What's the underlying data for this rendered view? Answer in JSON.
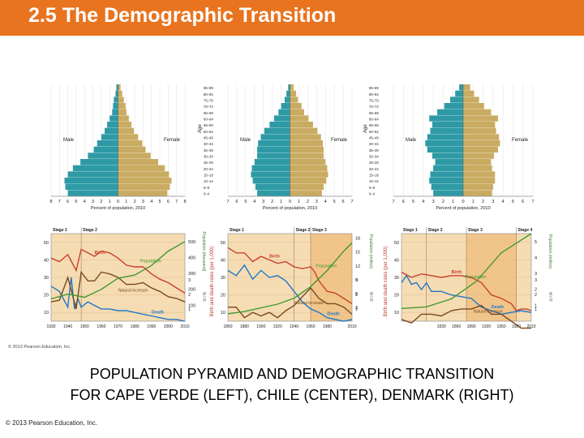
{
  "slide": {
    "title": "2.5 The Demographic Transition",
    "caption_line1": "POPULATION PYRAMID AND DEMOGRAPHIC TRANSITION",
    "caption_line2": "FOR CAPE VERDE (LEFT), CHILE (CENTER), DENMARK (RIGHT)",
    "footer": "© 2013 Pearson Education, Inc.",
    "figure_credit": "© 2013 Pearson Education, Inc."
  },
  "colors": {
    "title_bar": "#e8741f",
    "male": "#2e9aa6",
    "female": "#c9ab62",
    "graph_bg": "#f6dcb3",
    "graph_stage2": "#f1c58a",
    "birth": "#c8412b",
    "death": "#1f78c8",
    "natural_increase": "#7a4a1e",
    "population": "#3f9a2f"
  },
  "chart_data": [
    {
      "type": "bar",
      "subtype": "population-pyramid",
      "country": "Cape Verde",
      "ylabel": "Age",
      "xlabel": "Percent of population, 2010",
      "xlim": [
        -8,
        8
      ],
      "x_ticks": [
        "8",
        "7",
        "6",
        "5",
        "4",
        "3",
        "2",
        "1",
        "0",
        "1",
        "2",
        "3",
        "4",
        "5",
        "6",
        "7",
        "8"
      ],
      "age_groups": [
        "0–4",
        "5–9",
        "10–14",
        "15–19",
        "20–24",
        "25–29",
        "30–34",
        "35–39",
        "40–44",
        "45–49",
        "50–54",
        "55–59",
        "60–64",
        "65–69",
        "70–74",
        "75–79",
        "80–84",
        "85–89"
      ],
      "series": [
        {
          "name": "Male",
          "values": [
            6.0,
            6.3,
            6.4,
            6.0,
            5.4,
            4.5,
            3.6,
            2.9,
            2.5,
            2.0,
            1.6,
            1.3,
            1.0,
            0.7,
            0.6,
            0.5,
            0.3,
            0.2
          ]
        },
        {
          "name": "Female",
          "values": [
            5.9,
            6.2,
            6.4,
            6.1,
            5.6,
            4.8,
            3.9,
            3.3,
            2.9,
            2.4,
            1.9,
            1.6,
            1.3,
            1.0,
            0.9,
            0.7,
            0.5,
            0.3
          ]
        }
      ]
    },
    {
      "type": "bar",
      "subtype": "population-pyramid",
      "country": "Chile",
      "ylabel": "Age",
      "xlabel": "Percent of population, 2010",
      "xlim": [
        -7,
        7
      ],
      "x_ticks": [
        "7",
        "6",
        "5",
        "4",
        "3",
        "2",
        "1",
        "0",
        "1",
        "2",
        "3",
        "4",
        "5",
        "6",
        "7"
      ],
      "age_groups": [
        "0–4",
        "5–9",
        "10–14",
        "15–19",
        "20–24",
        "25–29",
        "30–34",
        "35–39",
        "40–44",
        "45–49",
        "50–54",
        "55–59",
        "60–64",
        "65–69",
        "70–74",
        "75–79",
        "80–84",
        "85–89"
      ],
      "series": [
        {
          "name": "Male",
          "values": [
            3.7,
            3.9,
            4.2,
            4.4,
            4.3,
            4.0,
            3.7,
            3.7,
            3.6,
            3.3,
            2.9,
            2.3,
            1.8,
            1.3,
            1.0,
            0.6,
            0.4,
            0.2
          ]
        },
        {
          "name": "Female",
          "values": [
            3.6,
            3.8,
            4.1,
            4.3,
            4.2,
            4.0,
            3.8,
            3.8,
            3.7,
            3.5,
            3.1,
            2.6,
            2.1,
            1.6,
            1.3,
            0.9,
            0.7,
            0.4
          ]
        }
      ]
    },
    {
      "type": "bar",
      "subtype": "population-pyramid",
      "country": "Denmark",
      "ylabel": "Age",
      "xlabel": "Percent of population, 2010",
      "xlim": [
        -7,
        7
      ],
      "x_ticks": [
        "7",
        "6",
        "5",
        "4",
        "3",
        "2",
        "1",
        "0",
        "1",
        "2",
        "3",
        "4",
        "5",
        "6",
        "7"
      ],
      "age_groups": [
        "0–4",
        "5–9",
        "10–14",
        "15–19",
        "20–24",
        "25–29",
        "30–34",
        "35–39",
        "40–44",
        "45–49",
        "50–54",
        "55–59",
        "60–64",
        "65–69",
        "70–74",
        "75–79",
        "80–84",
        "85–89"
      ],
      "series": [
        {
          "name": "Male",
          "values": [
            3.0,
            3.2,
            3.4,
            3.3,
            3.0,
            2.8,
            3.1,
            3.6,
            3.8,
            3.6,
            3.3,
            3.1,
            3.4,
            2.6,
            1.9,
            1.3,
            0.8,
            0.4
          ]
        },
        {
          "name": "Female",
          "values": [
            2.9,
            3.0,
            3.2,
            3.2,
            2.9,
            2.8,
            3.1,
            3.5,
            3.7,
            3.6,
            3.3,
            3.2,
            3.5,
            2.8,
            2.1,
            1.6,
            1.1,
            0.7
          ]
        }
      ]
    },
    {
      "type": "line",
      "country": "Cape Verde",
      "ylabel": "Birth and death rates (per 1,000)",
      "y2label": "Population (thousand)",
      "y3label": "N I R",
      "stages": [
        {
          "label": "Stage 1",
          "from": 1930,
          "to": 1948
        },
        {
          "label": "Stage 2",
          "from": 1948,
          "to": 2010
        }
      ],
      "x_ticks": [
        "1930",
        "1940",
        "1950",
        "1960",
        "1970",
        "1980",
        "1990",
        "2000",
        "2010"
      ],
      "xlim": [
        1930,
        2010
      ],
      "y_ticks": [
        "10",
        "20",
        "30",
        "40",
        "50"
      ],
      "ylim": [
        5,
        55
      ],
      "y2_ticks": [
        "100",
        "200",
        "300",
        "400",
        "500"
      ],
      "y2lim": [
        0,
        550
      ],
      "y3_ticks": [
        "1",
        "2",
        "3"
      ],
      "labels": {
        "birth": "Birth",
        "death": "Death",
        "natural_increase": "Natural increase",
        "population": "Population"
      },
      "series": [
        {
          "name": "Birth",
          "x": [
            1930,
            1935,
            1940,
            1945,
            1948,
            1952,
            1956,
            1960,
            1965,
            1970,
            1975,
            1980,
            1985,
            1990,
            1995,
            2000,
            2005,
            2010
          ],
          "values": [
            41,
            39,
            43,
            34,
            46,
            44,
            42,
            45,
            44,
            41,
            37,
            36,
            36,
            32,
            29,
            27,
            24,
            21
          ]
        },
        {
          "name": "Death",
          "x": [
            1930,
            1935,
            1940,
            1942,
            1944,
            1946,
            1948,
            1952,
            1956,
            1960,
            1965,
            1970,
            1975,
            1980,
            1985,
            1990,
            1995,
            2000,
            2005,
            2010
          ],
          "values": [
            25,
            22,
            13,
            30,
            12,
            18,
            13,
            16,
            14,
            12,
            12,
            11,
            11,
            10,
            9,
            8,
            7,
            6,
            6,
            5
          ]
        },
        {
          "name": "Natural increase",
          "x": [
            1930,
            1935,
            1940,
            1945,
            1948,
            1952,
            1956,
            1960,
            1965,
            1970,
            1975,
            1980,
            1985,
            1990,
            1995,
            2000,
            2005,
            2010
          ],
          "values": [
            16,
            17,
            30,
            12,
            33,
            28,
            28,
            33,
            32,
            30,
            26,
            26,
            27,
            24,
            22,
            19,
            18,
            16
          ]
        },
        {
          "name": "Population",
          "x": [
            1930,
            1940,
            1950,
            1960,
            1970,
            1980,
            1990,
            2000,
            2010
          ],
          "values": [
            140,
            170,
            150,
            200,
            270,
            290,
            350,
            440,
            500
          ]
        }
      ]
    },
    {
      "type": "line",
      "country": "Chile",
      "ylabel": "Birth and death rates (per 1,000)",
      "y2label": "Population (million)",
      "y3label": "N I R",
      "stages": [
        {
          "label": "Stage 1",
          "from": 1860,
          "to": 1940
        },
        {
          "label": "Stage 2",
          "from": 1940,
          "to": 1960
        },
        {
          "label": "Stage 3",
          "from": 1960,
          "to": 2010
        }
      ],
      "x_ticks": [
        "1860",
        "1880",
        "1900",
        "1920",
        "1940",
        "1960",
        "1980",
        "2010"
      ],
      "xlim": [
        1860,
        2010
      ],
      "y_ticks": [
        "10",
        "20",
        "30",
        "40",
        "50"
      ],
      "ylim": [
        5,
        55
      ],
      "y2_ticks": [
        "3",
        "6",
        "9",
        "12",
        "15",
        "18"
      ],
      "y2lim": [
        0,
        19
      ],
      "y3_ticks": [
        "1",
        "2",
        "3"
      ],
      "labels": {
        "birth": "Birth",
        "death": "Death",
        "natural_increase": "Natural increase",
        "population": "Population"
      },
      "series": [
        {
          "name": "Birth",
          "x": [
            1860,
            1870,
            1880,
            1890,
            1900,
            1910,
            1920,
            1930,
            1940,
            1950,
            1960,
            1965,
            1970,
            1980,
            1990,
            2000,
            2010
          ],
          "values": [
            47,
            44,
            44,
            39,
            42,
            40,
            38,
            39,
            36,
            35,
            36,
            33,
            28,
            22,
            21,
            18,
            15
          ]
        },
        {
          "name": "Death",
          "x": [
            1860,
            1870,
            1880,
            1890,
            1900,
            1910,
            1920,
            1930,
            1940,
            1950,
            1960,
            1970,
            1980,
            1990,
            2000,
            2010
          ],
          "values": [
            34,
            31,
            37,
            29,
            34,
            30,
            31,
            28,
            22,
            16,
            12,
            10,
            7,
            6,
            5,
            6
          ]
        },
        {
          "name": "Natural increase",
          "x": [
            1860,
            1870,
            1880,
            1890,
            1900,
            1910,
            1920,
            1930,
            1940,
            1950,
            1960,
            1970,
            1980,
            1990,
            2000,
            2010
          ],
          "values": [
            13,
            13,
            7,
            10,
            8,
            10,
            7,
            11,
            14,
            19,
            24,
            18,
            15,
            15,
            13,
            9
          ]
        },
        {
          "name": "Population",
          "x": [
            1860,
            1880,
            1900,
            1920,
            1940,
            1960,
            1980,
            2000,
            2010
          ],
          "values": [
            1.6,
            2.1,
            2.9,
            3.7,
            5.0,
            7.5,
            11.0,
            15.2,
            17.0
          ]
        }
      ]
    },
    {
      "type": "line",
      "country": "Denmark",
      "ylabel": "Birth and death rates (per 1,000)",
      "y2label": "Population (million)",
      "y3label": "N I R",
      "stages": [
        {
          "label": "Stage 1",
          "from": 1750,
          "to": 1800
        },
        {
          "label": "Stage 2",
          "from": 1800,
          "to": 1880
        },
        {
          "label": "Stage 3",
          "from": 1880,
          "to": 1980
        },
        {
          "label": "Stage 4",
          "from": 1980,
          "to": 2010
        }
      ],
      "x_ticks": [
        "1830",
        "1860",
        "1890",
        "1920",
        "1950",
        "1980",
        "2010"
      ],
      "xlim": [
        1750,
        2010
      ],
      "y_ticks": [
        "10",
        "20",
        "30",
        "40",
        "50"
      ],
      "ylim": [
        5,
        55
      ],
      "y2_ticks": [
        "1",
        "2",
        "3",
        "4",
        "5"
      ],
      "y2lim": [
        0,
        5.5
      ],
      "y3_ticks": [
        "1",
        "2",
        "3"
      ],
      "labels": {
        "birth": "Birth",
        "death": "Death",
        "natural_increase": "Natural increase",
        "population": "Population"
      },
      "series": [
        {
          "name": "Birth",
          "x": [
            1750,
            1770,
            1790,
            1810,
            1830,
            1850,
            1870,
            1890,
            1910,
            1930,
            1950,
            1970,
            1980,
            1990,
            2000,
            2010
          ],
          "values": [
            33,
            30,
            32,
            31,
            30,
            31,
            31,
            30,
            27,
            20,
            18,
            15,
            11,
            12,
            12,
            11
          ]
        },
        {
          "name": "Death",
          "x": [
            1750,
            1760,
            1770,
            1780,
            1790,
            1800,
            1810,
            1830,
            1850,
            1870,
            1890,
            1910,
            1930,
            1950,
            1970,
            1990,
            2010
          ],
          "values": [
            27,
            31,
            26,
            27,
            23,
            27,
            22,
            22,
            20,
            19,
            18,
            13,
            11,
            9,
            10,
            11,
            10
          ]
        },
        {
          "name": "Natural increase",
          "x": [
            1750,
            1770,
            1790,
            1810,
            1830,
            1850,
            1870,
            1890,
            1910,
            1930,
            1950,
            1970,
            1990,
            2010
          ],
          "values": [
            6,
            4,
            9,
            9,
            8,
            11,
            12,
            12,
            14,
            9,
            9,
            5,
            1,
            1
          ]
        },
        {
          "name": "Population",
          "x": [
            1750,
            1800,
            1850,
            1900,
            1950,
            2010
          ],
          "values": [
            0.8,
            0.9,
            1.4,
            2.5,
            4.3,
            5.5
          ]
        }
      ]
    }
  ]
}
